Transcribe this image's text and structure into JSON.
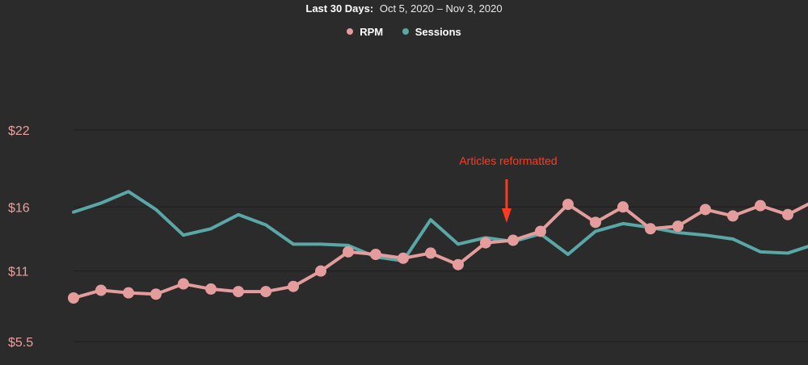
{
  "header": {
    "period_label": "Last 30 Days:",
    "period_value": "Oct 5, 2020 – Nov 3, 2020"
  },
  "legend": [
    {
      "name": "RPM",
      "color": "#e59c9c"
    },
    {
      "name": "Sessions",
      "color": "#5aa7a7"
    }
  ],
  "colors": {
    "background": "#2b2b2b",
    "rpm": "#e59c9c",
    "sessions": "#5aa7a7",
    "annotation": "#ff3b1f",
    "tick_label": "#e8a0a0",
    "grid": "#1e1e1e"
  },
  "chart_data": {
    "type": "line",
    "ylim": [
      5.5,
      22
    ],
    "yticks": [
      22,
      16,
      11,
      5.5
    ],
    "ytick_labels": [
      "$22",
      "$16",
      "$11",
      "$5.5"
    ],
    "grid": true,
    "legend_position": "top-center",
    "series": [
      {
        "name": "RPM",
        "markers": true,
        "values": [
          8.9,
          9.5,
          9.3,
          9.2,
          10.0,
          9.6,
          9.4,
          9.4,
          9.8,
          11.0,
          12.5,
          12.3,
          12.0,
          12.4,
          11.5,
          13.2,
          13.4,
          14.1,
          16.2,
          14.8,
          16.0,
          14.3,
          14.5,
          15.8,
          15.3,
          16.1,
          15.4,
          16.5
        ]
      },
      {
        "name": "Sessions",
        "markers": false,
        "values": [
          15.6,
          16.3,
          17.2,
          15.8,
          13.8,
          14.3,
          15.4,
          14.6,
          13.1,
          13.1,
          13.0,
          12.1,
          11.8,
          15.0,
          13.1,
          13.6,
          13.3,
          13.9,
          12.3,
          14.1,
          14.7,
          14.4,
          14.0,
          13.8,
          13.5,
          12.5,
          12.4,
          13.1
        ]
      }
    ],
    "annotations": [
      {
        "text": "Articles reformatted",
        "index": 16
      }
    ]
  }
}
